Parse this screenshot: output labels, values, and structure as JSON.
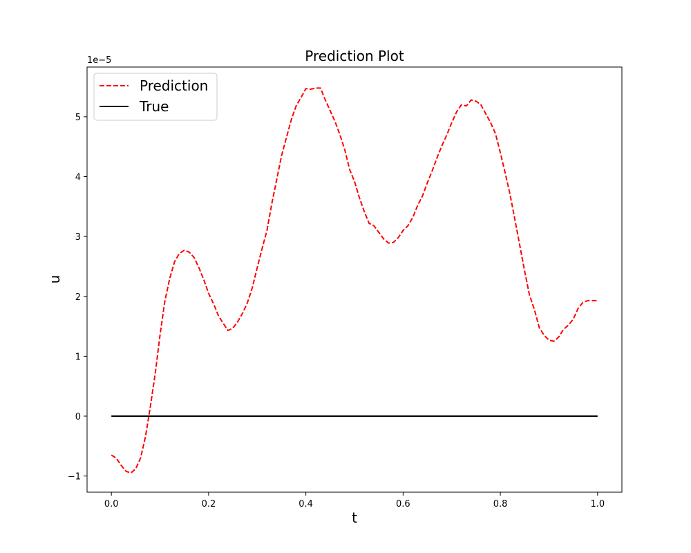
{
  "chart_data": {
    "type": "line",
    "title": "Prediction Plot",
    "xlabel": "t",
    "ylabel": "u",
    "y_offset_label": "1e−5",
    "y_unit_scale": 1e-05,
    "xlim": [
      -0.05,
      1.05
    ],
    "ylim": [
      -1.27,
      5.83
    ],
    "x_ticks": [
      0.0,
      0.2,
      0.4,
      0.6,
      0.8,
      1.0
    ],
    "x_tick_labels": [
      "0.0",
      "0.2",
      "0.4",
      "0.6",
      "0.8",
      "1.0"
    ],
    "y_ticks": [
      -1,
      0,
      1,
      2,
      3,
      4,
      5
    ],
    "y_tick_labels": [
      "−1",
      "0",
      "1",
      "2",
      "3",
      "4",
      "5"
    ],
    "grid": false,
    "legend_position": "upper left",
    "series": [
      {
        "name": "Prediction",
        "color": "#ff0000",
        "style": "dashed",
        "x": [
          0.0,
          0.01,
          0.02,
          0.03,
          0.04,
          0.05,
          0.06,
          0.07,
          0.08,
          0.09,
          0.1,
          0.11,
          0.12,
          0.13,
          0.14,
          0.15,
          0.16,
          0.17,
          0.18,
          0.19,
          0.2,
          0.21,
          0.22,
          0.23,
          0.24,
          0.25,
          0.26,
          0.27,
          0.28,
          0.29,
          0.3,
          0.31,
          0.32,
          0.33,
          0.34,
          0.35,
          0.36,
          0.37,
          0.38,
          0.39,
          0.4,
          0.41,
          0.42,
          0.43,
          0.44,
          0.45,
          0.46,
          0.47,
          0.48,
          0.49,
          0.5,
          0.51,
          0.52,
          0.53,
          0.54,
          0.55,
          0.56,
          0.57,
          0.58,
          0.59,
          0.6,
          0.61,
          0.62,
          0.63,
          0.64,
          0.65,
          0.66,
          0.67,
          0.68,
          0.69,
          0.7,
          0.71,
          0.72,
          0.73,
          0.74,
          0.75,
          0.76,
          0.77,
          0.78,
          0.79,
          0.8,
          0.81,
          0.82,
          0.83,
          0.84,
          0.85,
          0.86,
          0.87,
          0.88,
          0.89,
          0.9,
          0.91,
          0.92,
          0.93,
          0.94,
          0.95,
          0.96,
          0.97,
          0.98,
          0.99,
          1.0
        ],
        "values": [
          -0.65,
          -0.7,
          -0.82,
          -0.92,
          -0.95,
          -0.88,
          -0.7,
          -0.35,
          0.15,
          0.7,
          1.35,
          1.92,
          2.3,
          2.58,
          2.72,
          2.77,
          2.74,
          2.65,
          2.48,
          2.28,
          2.05,
          1.88,
          1.68,
          1.55,
          1.43,
          1.47,
          1.58,
          1.72,
          1.9,
          2.15,
          2.48,
          2.8,
          3.1,
          3.55,
          3.95,
          4.35,
          4.65,
          4.95,
          5.18,
          5.32,
          5.47,
          5.46,
          5.48,
          5.48,
          5.28,
          5.1,
          4.92,
          4.7,
          4.45,
          4.12,
          3.92,
          3.65,
          3.42,
          3.22,
          3.18,
          3.07,
          2.96,
          2.89,
          2.9,
          2.98,
          3.1,
          3.18,
          3.32,
          3.52,
          3.68,
          3.9,
          4.1,
          4.32,
          4.52,
          4.7,
          4.9,
          5.08,
          5.2,
          5.18,
          5.28,
          5.26,
          5.2,
          5.05,
          4.9,
          4.72,
          4.4,
          4.06,
          3.7,
          3.28,
          2.85,
          2.42,
          2.02,
          1.78,
          1.48,
          1.35,
          1.27,
          1.25,
          1.32,
          1.45,
          1.52,
          1.62,
          1.8,
          1.9,
          1.93,
          1.93,
          1.93
        ]
      },
      {
        "name": "True",
        "color": "#000000",
        "style": "solid",
        "x": [
          0.0,
          1.0
        ],
        "values": [
          0.0,
          0.0
        ]
      }
    ]
  }
}
